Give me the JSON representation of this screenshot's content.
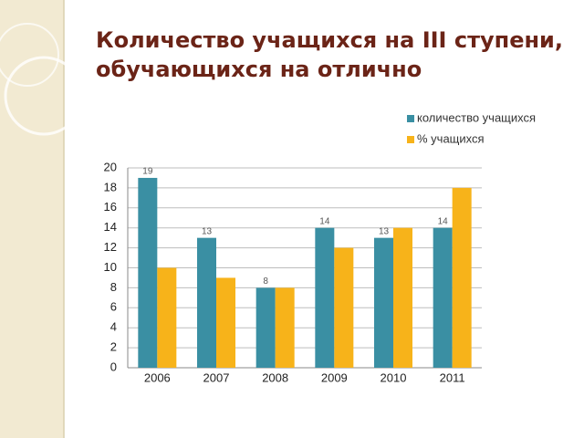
{
  "chart_data": {
    "type": "bar",
    "title": [
      "Количество учащихся на III ступени,",
      "обучающихся на отлично"
    ],
    "categories": [
      "2006",
      "2007",
      "2008",
      "2009",
      "2010",
      "2011"
    ],
    "series": [
      {
        "name": "количество учащихся",
        "color": "#3a8fa3",
        "values": [
          19,
          13,
          8,
          14,
          13,
          14
        ],
        "labels": true
      },
      {
        "name": "% учащихся",
        "color": "#f7b31a",
        "values": [
          10,
          9,
          8,
          12,
          14,
          18
        ],
        "labels": false
      }
    ],
    "ylim": [
      0,
      20
    ],
    "yticks": [
      0,
      2,
      4,
      6,
      8,
      10,
      12,
      14,
      16,
      18,
      20
    ],
    "grid": true,
    "legend": "top-right"
  }
}
